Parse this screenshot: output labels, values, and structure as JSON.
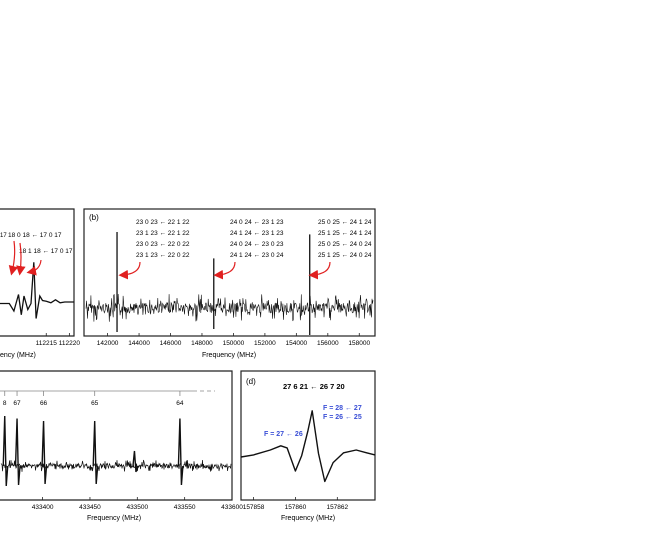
{
  "colors": {
    "trace": "#111111",
    "arrow": "#e02020",
    "blue_label": "#3a4fd6",
    "frame": "#222222"
  },
  "chart_data": [
    {
      "panel": "a",
      "type": "line",
      "xlabel_fragment": "ency (MHz)",
      "x_ticks": [
        {
          "value": 112215,
          "label": "112215"
        },
        {
          "value": 112220,
          "label": "112220"
        }
      ],
      "x_range": [
        112205,
        112221
      ],
      "annotations": [
        "18 0 18 ← 17 0 17",
        "18 1 18 ← 17 0 17"
      ],
      "annotation_fragments": [
        "17"
      ],
      "trace_points": [
        [
          112205,
          0.3
        ],
        [
          112207,
          0.3
        ],
        [
          112208,
          0.2
        ],
        [
          112209,
          0.42
        ],
        [
          112209.6,
          0.15
        ],
        [
          112210.2,
          0.4
        ],
        [
          112211,
          0.22
        ],
        [
          112211.7,
          0.3
        ],
        [
          112212.3,
          0.85
        ],
        [
          112212.8,
          0.1
        ],
        [
          112213.6,
          0.4
        ],
        [
          112214.2,
          0.34
        ],
        [
          112215,
          0.33
        ],
        [
          112216,
          0.31
        ],
        [
          112217,
          0.35
        ],
        [
          112218,
          0.31
        ],
        [
          112219,
          0.32
        ],
        [
          112220,
          0.32
        ],
        [
          112221,
          0.32
        ]
      ]
    },
    {
      "panel": "b",
      "type": "line",
      "label": "(b)",
      "xlabel": "Frequency (MHz)",
      "x_range": [
        140500,
        159000
      ],
      "x_ticks": [
        {
          "value": 142000,
          "label": "142000"
        },
        {
          "value": 144000,
          "label": "144000"
        },
        {
          "value": 146000,
          "label": "146000"
        },
        {
          "value": 148000,
          "label": "148000"
        },
        {
          "value": 150000,
          "label": "150000"
        },
        {
          "value": 152000,
          "label": "152000"
        },
        {
          "value": 154000,
          "label": "154000"
        },
        {
          "value": 156000,
          "label": "156000"
        },
        {
          "value": 158000,
          "label": "158000"
        }
      ],
      "peaks": [
        {
          "x": 142600,
          "up": 0.95,
          "down": 0.4
        },
        {
          "x": 148750,
          "up": 0.62,
          "down": 0.35
        },
        {
          "x": 154850,
          "up": 0.92,
          "down": 0.45
        }
      ],
      "annotation_groups": [
        {
          "lines": [
            "23 0 23 ← 22 1 22",
            "23 1 23 ← 22 1 22",
            "23 0 23 ← 22 0 22",
            "23 1 23 ← 22 0 22"
          ]
        },
        {
          "lines": [
            "24 0 24 ← 23 1 23",
            "24 1 24 ← 23 1 23",
            "24 0 24 ← 23 0 23",
            "24 1 24 ← 23 0 24"
          ]
        },
        {
          "lines": [
            "25 0 25 ← 24 1 24",
            "25 1 25 ← 24 1 24",
            "25 0 25 ← 24 0 24",
            "25 1 25 ← 24 0 24"
          ]
        }
      ]
    },
    {
      "panel": "c",
      "type": "line",
      "xlabel": "Frequency (MHz)",
      "x_range": [
        433355,
        433600
      ],
      "x_ticks": [
        {
          "value": 433400,
          "label": "433400"
        },
        {
          "value": 433450,
          "label": "433450"
        },
        {
          "value": 433500,
          "label": "433500"
        },
        {
          "value": 433550,
          "label": "433550"
        },
        {
          "value": 433600,
          "label": "433600"
        }
      ],
      "top_labels": [
        {
          "x": 433360,
          "label": "8"
        },
        {
          "x": 433373,
          "label": "67"
        },
        {
          "x": 433401,
          "label": "66"
        },
        {
          "x": 433455,
          "label": "65"
        },
        {
          "x": 433545,
          "label": "64"
        }
      ],
      "peaks": [
        {
          "x": 433360,
          "h": 1.0
        },
        {
          "x": 433373,
          "h": 0.95
        },
        {
          "x": 433401,
          "h": 0.9
        },
        {
          "x": 433455,
          "h": 0.9
        },
        {
          "x": 433497,
          "h": 0.3
        },
        {
          "x": 433545,
          "h": 0.95
        }
      ]
    },
    {
      "panel": "d",
      "type": "line",
      "label": "(d)",
      "title": "27 6 21 ← 26 7 20",
      "xlabel": "Frequency (MHz)",
      "x_range": [
        157857.4,
        157863.8
      ],
      "x_ticks": [
        {
          "value": 157858,
          "label": "157858"
        },
        {
          "value": 157860,
          "label": "157860"
        },
        {
          "value": 157862,
          "label": "157862"
        }
      ],
      "annotations": [
        {
          "text": "F = 28 ← 27"
        },
        {
          "text": "F = 26 ← 25"
        },
        {
          "text": "F = 27 ← 26"
        }
      ],
      "trace_points": [
        [
          157857.4,
          0.3
        ],
        [
          157858,
          0.33
        ],
        [
          157858.8,
          0.4
        ],
        [
          157859.3,
          0.46
        ],
        [
          157859.6,
          0.43
        ],
        [
          157860.0,
          0.1
        ],
        [
          157860.3,
          0.32
        ],
        [
          157860.6,
          0.68
        ],
        [
          157860.8,
          0.96
        ],
        [
          157861.1,
          0.35
        ],
        [
          157861.4,
          -0.05
        ],
        [
          157861.8,
          0.22
        ],
        [
          157862.3,
          0.36
        ],
        [
          157862.9,
          0.4
        ],
        [
          157863.4,
          0.36
        ],
        [
          157863.8,
          0.33
        ]
      ]
    }
  ]
}
